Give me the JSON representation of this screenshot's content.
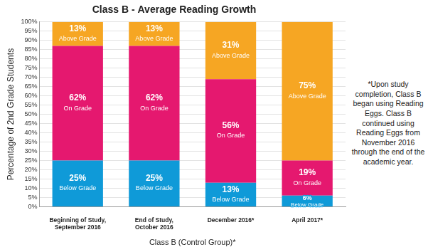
{
  "chart_data": {
    "type": "bar",
    "title": "Class B - Average Reading Growth",
    "x_label": "Class B (Control Group)*",
    "y_label": "Percentage of 2nd Grade Students",
    "annotations": [
      "*Upon study completion, Class B began using Reading Eggs. Class B continued using Reading Eggs from November 2016 through the end of the academic year."
    ],
    "categories": [
      "Beginning of Study, September 2016",
      "End of Study, October 2016",
      "December 2016*",
      "April 2017*"
    ],
    "series": [
      {
        "name": "Below Grade",
        "color": "#0f9ad8",
        "values": [
          25,
          25,
          13,
          6
        ],
        "value_labels": [
          "25%",
          "25%",
          "13%",
          "6%"
        ]
      },
      {
        "name": "On Grade",
        "color": "#e5186f",
        "values": [
          62,
          62,
          56,
          19
        ],
        "value_labels": [
          "62%",
          "62%",
          "56%",
          "19%"
        ]
      },
      {
        "name": "Above Grade",
        "color": "#f6a623",
        "values": [
          13,
          13,
          31,
          75
        ],
        "value_labels": [
          "13%",
          "13%",
          "31%",
          "75%"
        ]
      }
    ],
    "ylim": [
      0,
      100
    ],
    "yticks": [
      {
        "value": 0,
        "label": "0%"
      },
      {
        "value": 5,
        "label": "5%"
      },
      {
        "value": 10,
        "label": "10%"
      },
      {
        "value": 15,
        "label": "15%"
      },
      {
        "value": 20,
        "label": "20%"
      },
      {
        "value": 25,
        "label": "25%"
      },
      {
        "value": 30,
        "label": "30%"
      },
      {
        "value": 35,
        "label": "35%"
      },
      {
        "value": 40,
        "label": "40%"
      },
      {
        "value": 45,
        "label": "45%"
      },
      {
        "value": 50,
        "label": "50%"
      },
      {
        "value": 55,
        "label": "55%"
      },
      {
        "value": 60,
        "label": "60%"
      },
      {
        "value": 65,
        "label": "65%"
      },
      {
        "value": 70,
        "label": "70%"
      },
      {
        "value": 75,
        "label": "75%"
      },
      {
        "value": 80,
        "label": "80%"
      },
      {
        "value": 85,
        "label": "85%"
      },
      {
        "value": 90,
        "label": "90%"
      },
      {
        "value": 95,
        "label": "95%"
      },
      {
        "value": 100,
        "label": "100%"
      }
    ],
    "stacked": true,
    "data_labels": true,
    "grid": true
  }
}
